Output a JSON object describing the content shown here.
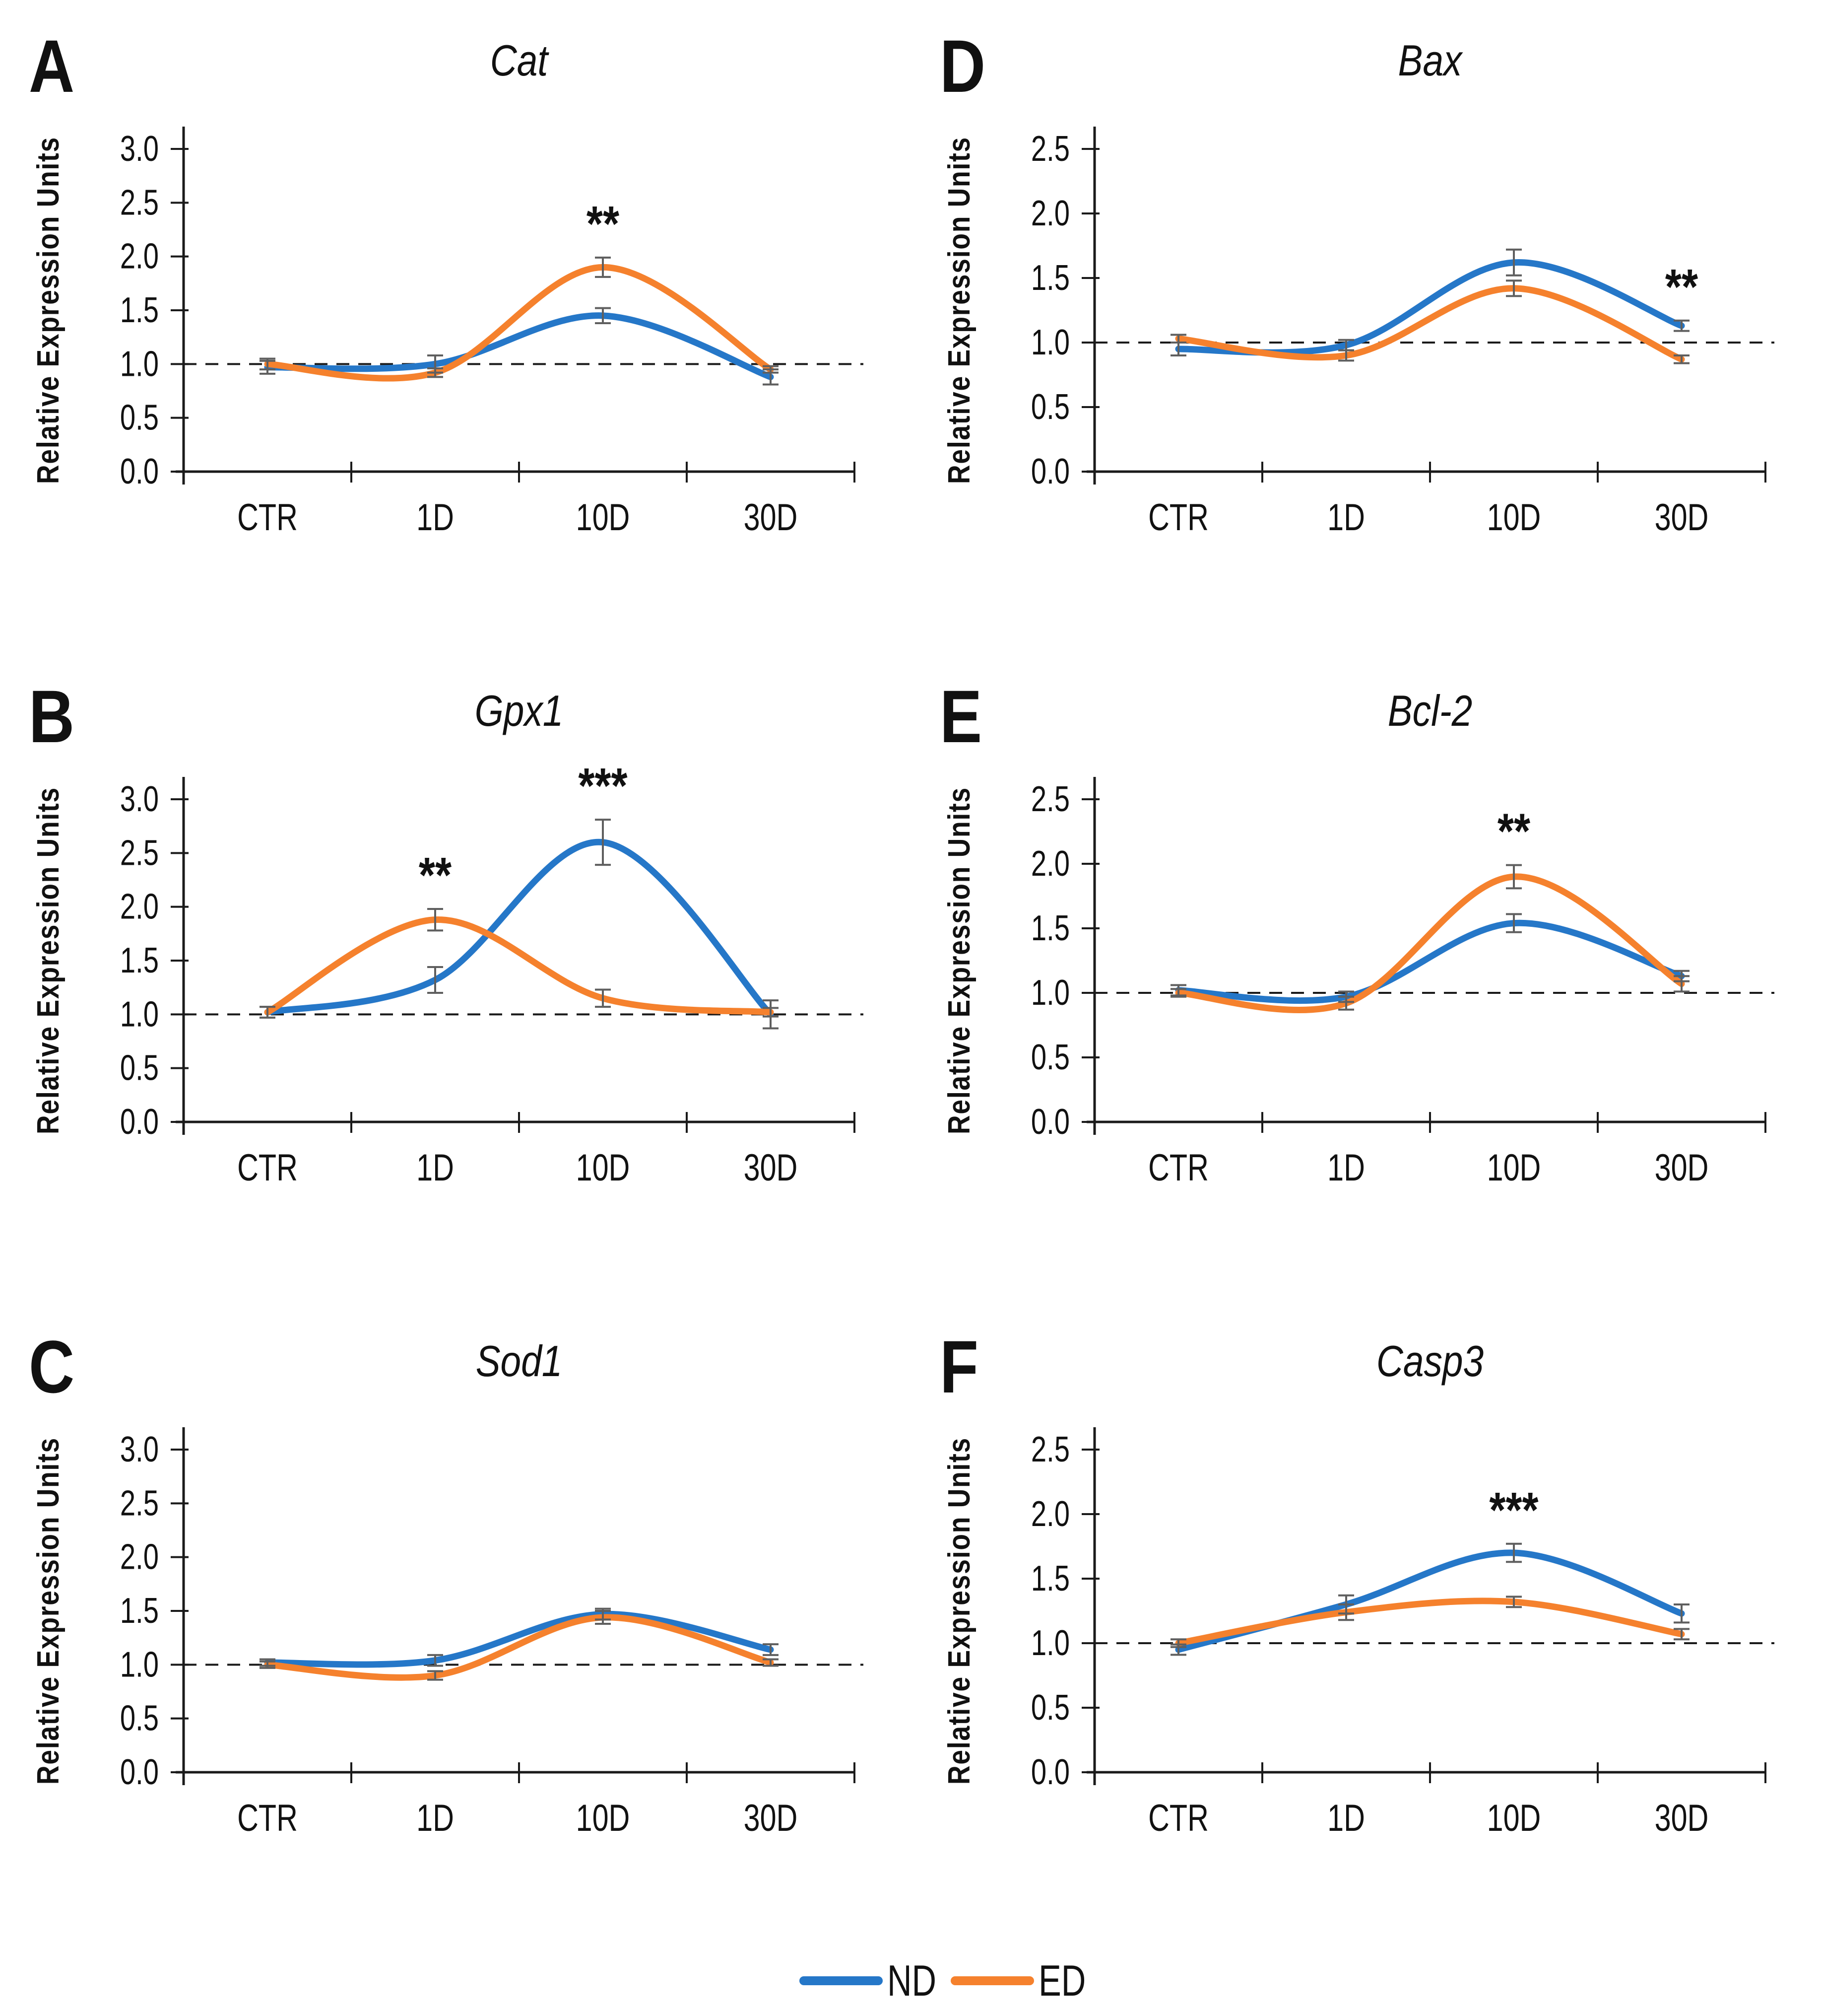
{
  "axis": {
    "y_label": "Relative Expression Units",
    "categories": [
      "CTR",
      "1D",
      "10D",
      "30D"
    ]
  },
  "legend": {
    "items": [
      {
        "label": "ND",
        "color": "#2577C8"
      },
      {
        "label": "ED",
        "color": "#F5812D"
      }
    ]
  },
  "style_colors": {
    "nd_blue": "#2577C8",
    "ed_orange": "#F5812D",
    "error_bar_gray": "#5f5f5f",
    "axis_black": "#1a1a1a"
  },
  "chart_data": [
    {
      "panel_label": "A",
      "title": "Cat",
      "type": "line",
      "x": [
        "CTR",
        "1D",
        "10D",
        "30D"
      ],
      "ylim": [
        0,
        3.0
      ],
      "ytick_labels": [
        "0.0",
        "0.5",
        "1.0",
        "1.5",
        "2.0",
        "2.5",
        "3.0"
      ],
      "baseline": 1.0,
      "series": [
        {
          "name": "ND",
          "color": "#2577C8",
          "values": [
            0.97,
            1.0,
            1.45,
            0.88
          ],
          "errors": [
            0.06,
            0.08,
            0.07,
            0.07
          ]
        },
        {
          "name": "ED",
          "color": "#F5812D",
          "values": [
            1.0,
            0.92,
            1.9,
            0.95
          ],
          "errors": [
            0.05,
            0.04,
            0.09,
            0.03
          ]
        }
      ],
      "significance": [
        {
          "series": "ED",
          "category": "10D",
          "label": "**"
        }
      ]
    },
    {
      "panel_label": "D",
      "title": "Bax",
      "type": "line",
      "x": [
        "CTR",
        "1D",
        "10D",
        "30D"
      ],
      "ylim": [
        0,
        2.5
      ],
      "ytick_labels": [
        "0.0",
        "0.5",
        "1.0",
        "1.5",
        "2.0",
        "2.5"
      ],
      "baseline": 1.0,
      "series": [
        {
          "name": "ND",
          "color": "#2577C8",
          "values": [
            0.95,
            0.98,
            1.62,
            1.13
          ],
          "errors": [
            0.05,
            0.04,
            0.1,
            0.04
          ]
        },
        {
          "name": "ED",
          "color": "#F5812D",
          "values": [
            1.03,
            0.9,
            1.42,
            0.87
          ],
          "errors": [
            0.03,
            0.04,
            0.06,
            0.03
          ]
        }
      ],
      "significance": [
        {
          "series": "ND",
          "category": "30D",
          "label": "**"
        }
      ]
    },
    {
      "panel_label": "B",
      "title": "Gpx1",
      "type": "line",
      "x": [
        "CTR",
        "1D",
        "10D",
        "30D"
      ],
      "ylim": [
        0,
        3.0
      ],
      "ytick_labels": [
        "0.0",
        "0.5",
        "1.0",
        "1.5",
        "2.0",
        "2.5",
        "3.0"
      ],
      "baseline": 1.0,
      "series": [
        {
          "name": "ND",
          "color": "#2577C8",
          "values": [
            1.02,
            1.32,
            2.6,
            1.0
          ],
          "errors": [
            0.05,
            0.12,
            0.21,
            0.13
          ]
        },
        {
          "name": "ED",
          "color": "#F5812D",
          "values": [
            1.02,
            1.88,
            1.15,
            1.02
          ],
          "errors": [
            0.05,
            0.1,
            0.08,
            0.04
          ]
        }
      ],
      "significance": [
        {
          "series": "ED",
          "category": "1D",
          "label": "**"
        },
        {
          "series": "ND",
          "category": "10D",
          "label": "***"
        }
      ]
    },
    {
      "panel_label": "E",
      "title": "Bcl-2",
      "type": "line",
      "x": [
        "CTR",
        "1D",
        "10D",
        "30D"
      ],
      "ylim": [
        0,
        2.5
      ],
      "ytick_labels": [
        "0.0",
        "0.5",
        "1.0",
        "1.5",
        "2.0",
        "2.5"
      ],
      "baseline": 1.0,
      "series": [
        {
          "name": "ND",
          "color": "#2577C8",
          "values": [
            1.02,
            0.97,
            1.54,
            1.13
          ],
          "errors": [
            0.04,
            0.04,
            0.07,
            0.04
          ]
        },
        {
          "name": "ED",
          "color": "#F5812D",
          "values": [
            1.0,
            0.92,
            1.9,
            1.07
          ],
          "errors": [
            0.03,
            0.05,
            0.09,
            0.06
          ]
        }
      ],
      "significance": [
        {
          "series": "ED",
          "category": "10D",
          "label": "**"
        }
      ]
    },
    {
      "panel_label": "C",
      "title": "Sod1",
      "type": "line",
      "x": [
        "CTR",
        "1D",
        "10D",
        "30D"
      ],
      "ylim": [
        0,
        3.0
      ],
      "ytick_labels": [
        "0.0",
        "0.5",
        "1.0",
        "1.5",
        "2.0",
        "2.5",
        "3.0"
      ],
      "baseline": 1.0,
      "series": [
        {
          "name": "ND",
          "color": "#2577C8",
          "values": [
            1.02,
            1.04,
            1.47,
            1.14
          ],
          "errors": [
            0.03,
            0.05,
            0.05,
            0.05
          ]
        },
        {
          "name": "ED",
          "color": "#F5812D",
          "values": [
            1.0,
            0.9,
            1.44,
            1.02
          ],
          "errors": [
            0.03,
            0.04,
            0.06,
            0.03
          ]
        }
      ],
      "significance": []
    },
    {
      "panel_label": "F",
      "title": "Casp3",
      "type": "line",
      "x": [
        "CTR",
        "1D",
        "10D",
        "30D"
      ],
      "ylim": [
        0,
        2.5
      ],
      "ytick_labels": [
        "0.0",
        "0.5",
        "1.0",
        "1.5",
        "2.0",
        "2.5"
      ],
      "baseline": 1.0,
      "series": [
        {
          "name": "ND",
          "color": "#2577C8",
          "values": [
            0.95,
            1.3,
            1.7,
            1.23
          ],
          "errors": [
            0.04,
            0.07,
            0.07,
            0.07
          ]
        },
        {
          "name": "ED",
          "color": "#F5812D",
          "values": [
            1.0,
            1.24,
            1.32,
            1.07
          ],
          "errors": [
            0.03,
            0.06,
            0.04,
            0.04
          ]
        }
      ],
      "significance": [
        {
          "series": "ND",
          "category": "10D",
          "label": "***"
        }
      ]
    }
  ]
}
